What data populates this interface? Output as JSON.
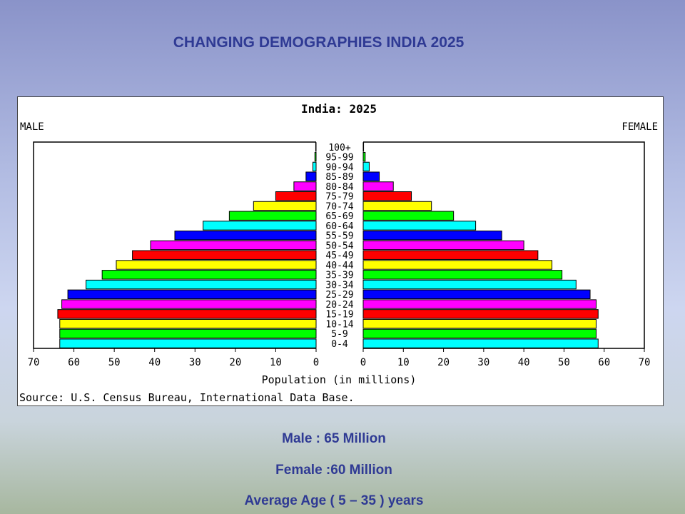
{
  "slide": {
    "title": "CHANGING DEMOGRAPHIES INDIA 2025",
    "footer": [
      "Male : 65 Million",
      "Female :60 Million",
      "Average Age ( 5 – 35 ) years"
    ]
  },
  "chart_data": {
    "type": "bar",
    "orientation": "horizontal-pyramid",
    "title": "India: 2025",
    "left_label": "MALE",
    "right_label": "FEMALE",
    "xlabel": "Population (in millions)",
    "source": "Source: U.S. Census Bureau, International Data Base.",
    "xlim": [
      0,
      70
    ],
    "x_ticks": [
      0,
      10,
      20,
      30,
      40,
      50,
      60,
      70
    ],
    "grid": false,
    "categories": [
      "0-4",
      "5-9",
      "10-14",
      "15-19",
      "20-24",
      "25-29",
      "30-34",
      "35-39",
      "40-44",
      "45-49",
      "50-54",
      "55-59",
      "60-64",
      "65-69",
      "70-74",
      "75-79",
      "80-84",
      "85-89",
      "90-94",
      "95-99",
      "100+"
    ],
    "series": [
      {
        "name": "MALE",
        "values": [
          63.5,
          63.5,
          63.5,
          64,
          63,
          61.5,
          57,
          53,
          49.5,
          45.5,
          41,
          35,
          28,
          21.5,
          15.5,
          10,
          5.5,
          2.5,
          0.8,
          0.3,
          0.1
        ]
      },
      {
        "name": "FEMALE",
        "values": [
          58.5,
          58,
          58,
          58.5,
          58,
          56.5,
          53,
          49.5,
          47,
          43.5,
          40,
          34.5,
          28,
          22.5,
          17,
          12,
          7.5,
          4,
          1.5,
          0.5,
          0.1
        ]
      }
    ],
    "colors": [
      "#00ffff",
      "#00ff00",
      "#ffff00",
      "#ff0000",
      "#ff00ff",
      "#0000ff"
    ]
  }
}
